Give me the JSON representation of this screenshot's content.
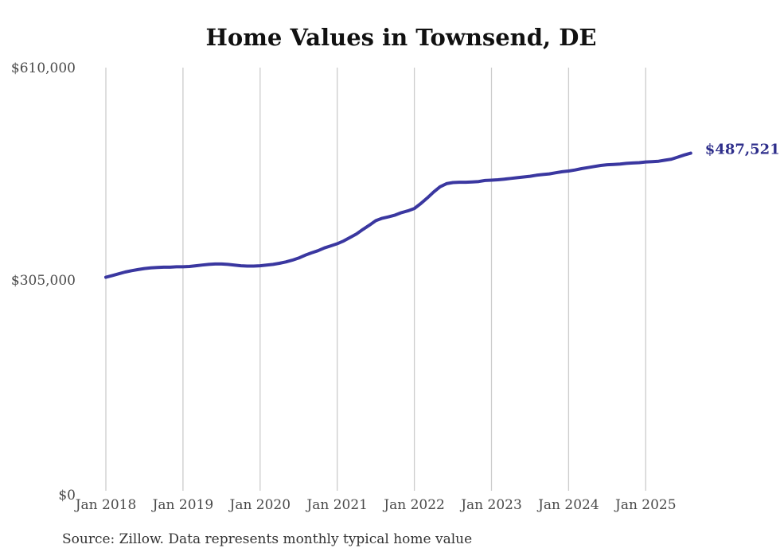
{
  "chart_data": {
    "type": "line",
    "title": "Home Values in Townsend, DE",
    "source_note": "Source: Zillow. Data represents monthly typical home value",
    "series": [
      {
        "name": "Monthly typical home value",
        "x": [
          "2018-01",
          "2018-02",
          "2018-03",
          "2018-04",
          "2018-05",
          "2018-06",
          "2018-07",
          "2018-08",
          "2018-09",
          "2018-10",
          "2018-11",
          "2018-12",
          "2019-01",
          "2019-02",
          "2019-03",
          "2019-04",
          "2019-05",
          "2019-06",
          "2019-07",
          "2019-08",
          "2019-09",
          "2019-10",
          "2019-11",
          "2019-12",
          "2020-01",
          "2020-02",
          "2020-03",
          "2020-04",
          "2020-05",
          "2020-06",
          "2020-07",
          "2020-08",
          "2020-09",
          "2020-10",
          "2020-11",
          "2020-12",
          "2021-01",
          "2021-02",
          "2021-03",
          "2021-04",
          "2021-05",
          "2021-06",
          "2021-07",
          "2021-08",
          "2021-09",
          "2021-10",
          "2021-11",
          "2021-12",
          "2022-01",
          "2022-02",
          "2022-03",
          "2022-04",
          "2022-05",
          "2022-06",
          "2022-07",
          "2022-08",
          "2022-09",
          "2022-10",
          "2022-11",
          "2022-12",
          "2023-01",
          "2023-02",
          "2023-03",
          "2023-04",
          "2023-05",
          "2023-06",
          "2023-07",
          "2023-08",
          "2023-09",
          "2023-10",
          "2023-11",
          "2023-12",
          "2024-01",
          "2024-02",
          "2024-03",
          "2024-04",
          "2024-05",
          "2024-06",
          "2024-07",
          "2024-08",
          "2024-09",
          "2024-10",
          "2024-11",
          "2024-12",
          "2025-01",
          "2025-02",
          "2025-03",
          "2025-04",
          "2025-05",
          "2025-06",
          "2025-07",
          "2025-08"
        ],
        "values": [
          310000,
          312500,
          315000,
          317500,
          319500,
          321000,
          322500,
          323500,
          324000,
          324500,
          324500,
          325000,
          325000,
          325500,
          326500,
          327500,
          328500,
          329000,
          329000,
          328500,
          327500,
          326500,
          326000,
          326000,
          326500,
          327500,
          328500,
          330000,
          332000,
          334500,
          337500,
          341500,
          345000,
          348000,
          352000,
          355000,
          358000,
          362000,
          367000,
          372000,
          378500,
          384500,
          391000,
          394500,
          396500,
          399000,
          402500,
          405000,
          408500,
          415500,
          423500,
          432000,
          439500,
          444000,
          445500,
          446000,
          446000,
          446500,
          447000,
          448500,
          449000,
          449500,
          450500,
          451500,
          452500,
          453500,
          454500,
          456000,
          457000,
          458000,
          459500,
          461000,
          462000,
          463500,
          465500,
          467000,
          468500,
          470000,
          471000,
          471500,
          472000,
          473000,
          473500,
          474000,
          475000,
          475500,
          476000,
          477500,
          479000,
          482000,
          485000,
          487521
        ]
      }
    ],
    "end_label": "$487,521",
    "end_value": 487521,
    "x_tick_labels": [
      "Jan 2018",
      "Jan 2019",
      "Jan 2020",
      "Jan 2021",
      "Jan 2022",
      "Jan 2023",
      "Jan 2024",
      "Jan 2025"
    ],
    "y_ticks": [
      {
        "label": "$0",
        "value": 0
      },
      {
        "label": "$305,000",
        "value": 305000
      },
      {
        "label": "$610,000",
        "value": 610000
      }
    ],
    "ylim": [
      0,
      610000
    ],
    "grid": "vertical-only",
    "legend": "none",
    "colors": {
      "line": "#3a37a0",
      "end_label": "#2e2e8b",
      "grid": "#cccccc",
      "tick_label": "#4a4a4a",
      "title": "#111111",
      "source": "#333333",
      "background": "#ffffff"
    }
  }
}
